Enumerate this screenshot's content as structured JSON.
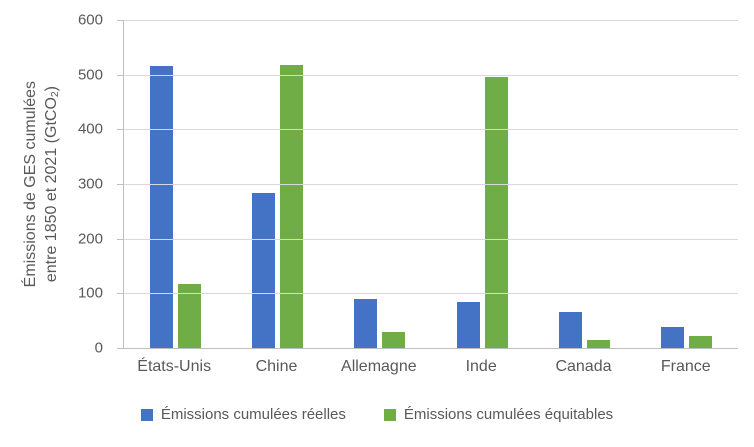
{
  "chart_data": {
    "type": "bar",
    "title": "",
    "categories": [
      "États-Unis",
      "Chine",
      "Allemagne",
      "Inde",
      "Canada",
      "France"
    ],
    "series": [
      {
        "name": "Émissions cumulées réelles",
        "color": "#4472C4",
        "values": [
          515,
          283,
          90,
          84,
          65,
          38
        ]
      },
      {
        "name": "Émissions cumulées équitables",
        "color": "#70AD47",
        "values": [
          118,
          518,
          30,
          495,
          14,
          22
        ]
      }
    ],
    "ylabel_line1": "Émissions de GES cumulées",
    "ylabel_line2_prefix": "entre 1850 et 2021 (GtCO",
    "ylabel_subscript": "2",
    "ylabel_line2_suffix": ")",
    "yticks": [
      0,
      100,
      200,
      300,
      400,
      500,
      600
    ],
    "ylim": [
      0,
      600
    ],
    "grid": true,
    "legend_position": "bottom"
  },
  "colors": {
    "series_blue": "#4472C4",
    "series_green": "#70AD47",
    "gridline": "#D9D9D9",
    "axis_line": "#BFBFBF",
    "text": "#595959",
    "background": "#FFFFFF"
  }
}
